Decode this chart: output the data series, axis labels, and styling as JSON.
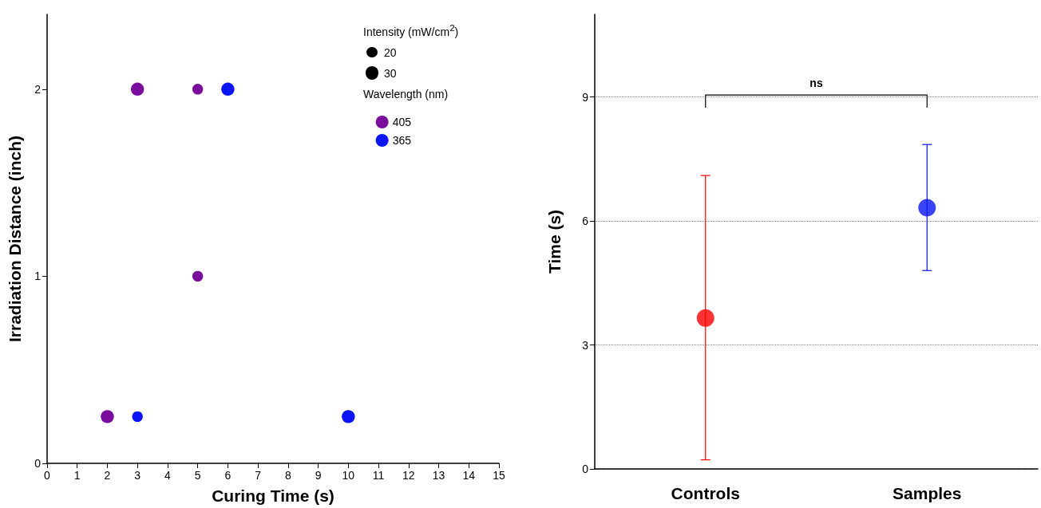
{
  "chart_data": [
    {
      "type": "bubble",
      "xlabel": "Curing Time (s)",
      "ylabel": "Irradiation Distance (inch)",
      "legend_title": "Wavelength (nm)",
      "annotations": [
        "Intensity (mW/cm$^{2}$)"
      ],
      "size_legend": [
        20,
        30
      ],
      "xlim": [
        0,
        15
      ],
      "xticks": [
        0,
        1,
        2,
        3,
        4,
        5,
        6,
        7,
        8,
        9,
        10,
        11,
        12,
        13,
        14,
        15
      ],
      "ylim": [
        0,
        2.4
      ],
      "yticks": [
        0,
        1,
        2
      ],
      "legend": "top right",
      "grid": false,
      "series": [
        {
          "name": "405",
          "color": "#7b0d9e",
          "x": [
            2,
            3,
            5,
            5
          ],
          "values": [
            0.25,
            2,
            2,
            1
          ],
          "sizes": [
            30,
            30,
            20,
            20
          ]
        },
        {
          "name": "365",
          "color": "#0a14f5",
          "x": [
            3,
            6,
            10
          ],
          "values": [
            0.25,
            2,
            0.25
          ],
          "sizes": [
            20,
            30,
            30
          ]
        }
      ]
    },
    {
      "type": "scatter",
      "ylabel": "Time (s)",
      "categories": [
        "Controls",
        "Samples"
      ],
      "ylim": [
        0,
        11
      ],
      "yticks": [
        0,
        3,
        6,
        9
      ],
      "grid": "y",
      "legend": false,
      "values": [
        3.65,
        6.32
      ],
      "colors": [
        "#ff0000",
        "#0a14f5"
      ],
      "errors": [
        [
          0.22,
          7.1
        ],
        [
          4.8,
          7.85
        ]
      ],
      "annotations": [
        "ns"
      ]
    }
  ]
}
